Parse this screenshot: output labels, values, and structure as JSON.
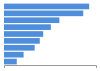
{
  "chart_data": {
    "type": "bar",
    "orientation": "horizontal",
    "categories": [
      null,
      null,
      null,
      null,
      null,
      null,
      null,
      null,
      null
    ],
    "values": [
      100,
      93,
      65,
      55,
      46,
      42,
      36,
      23,
      15
    ],
    "color": "#4e8edb",
    "xlim": [
      0,
      108
    ],
    "tick_labels": false
  }
}
